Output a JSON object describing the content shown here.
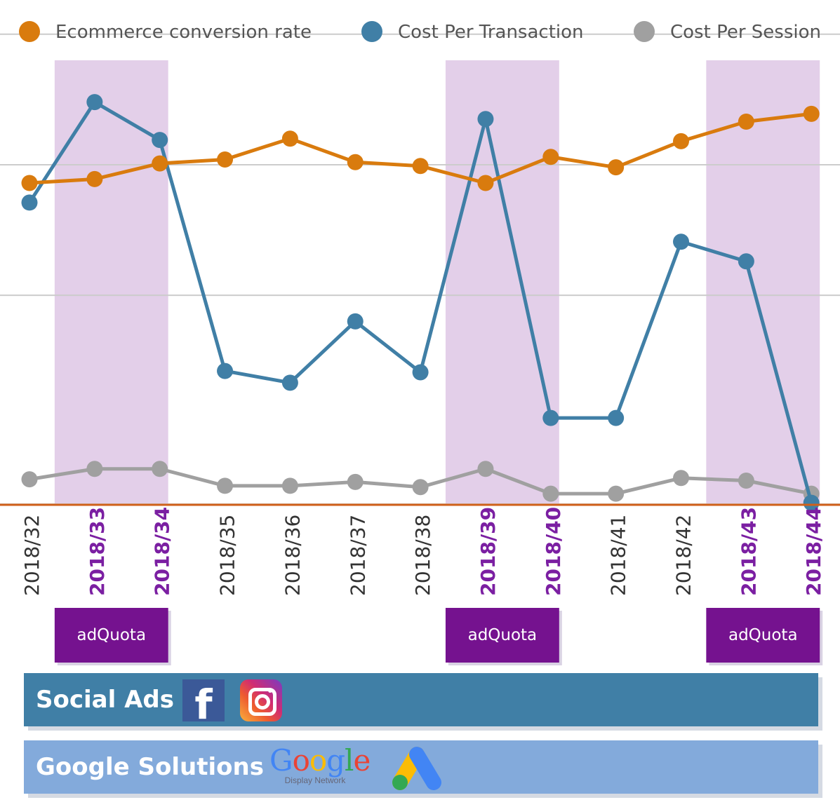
{
  "chart_data": {
    "type": "line",
    "categories": [
      "2018/32",
      "2018/33",
      "2018/34",
      "2018/35",
      "2018/36",
      "2018/37",
      "2018/38",
      "2018/39",
      "2018/40",
      "2018/41",
      "2018/42",
      "2018/43",
      "2018/44"
    ],
    "highlighted_categories": [
      "2018/33",
      "2018/34",
      "2018/39",
      "2018/40",
      "2018/43",
      "2018/44"
    ],
    "series": [
      {
        "name": "Ecommerce conversion rate",
        "color": "#d97b0e",
        "values": [
          76,
          79,
          91,
          94,
          110,
          92,
          89,
          76,
          96,
          88,
          108,
          123,
          129
        ]
      },
      {
        "name": "Cost Per Transaction",
        "color": "#407fa6",
        "values": [
          61,
          138,
          109,
          -68,
          -77,
          -30,
          -69,
          125,
          -104,
          -104,
          31,
          16,
          -169
        ]
      },
      {
        "name": "Cost Per Session",
        "color": "#a0a0a0",
        "values": [
          -151,
          -143,
          -143,
          -156,
          -156,
          -153,
          -157,
          -143,
          -162,
          -162,
          -150,
          -152,
          -162
        ]
      }
    ],
    "ylim": [
      -170,
      170
    ],
    "gridlines": [
      -170,
      -10,
      90,
      190
    ],
    "title": "",
    "xlabel": "",
    "ylabel": "",
    "legend": "top",
    "campaign_badge": "adQuota",
    "colors": {
      "highlight_band": "#e3cfe9",
      "highlight_label": "#7b1fa2",
      "normal_label": "#333333",
      "baseline": "#d0601a",
      "grid": "#cccccc",
      "badge": "#75128f"
    }
  },
  "banners": {
    "social": {
      "label": "Social Ads",
      "icons": [
        "facebook-icon",
        "instagram-icon"
      ]
    },
    "google": {
      "label": "Google Solutions",
      "logo_text": "Google",
      "logo_subtext": "Display Network",
      "icons": [
        "google-display-network-logo",
        "google-ads-icon"
      ]
    }
  }
}
